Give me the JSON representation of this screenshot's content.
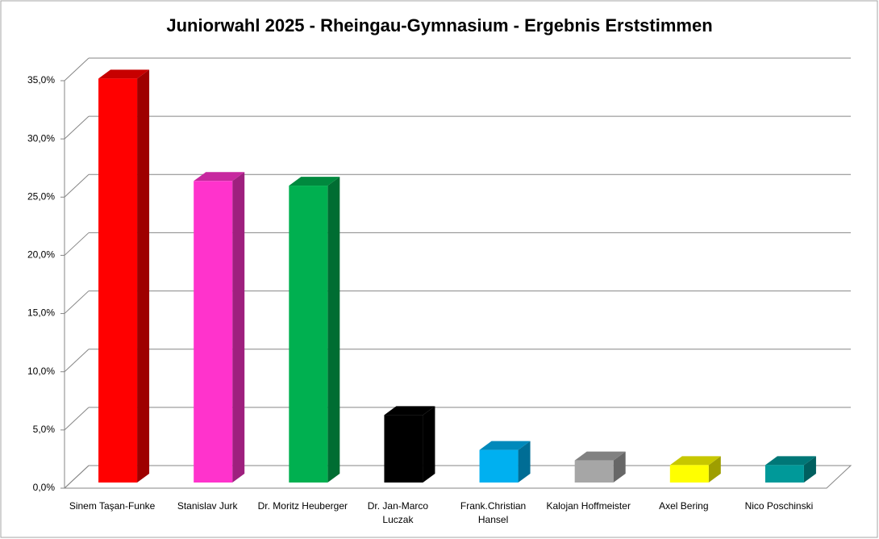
{
  "chart_data": {
    "type": "bar3d",
    "title": "Juniorwahl 2025 - Rheingau-Gymnasium - Ergebnis Erststimmen",
    "categories": [
      "Sinem Taşan-Funke",
      "Stanislav Jurk",
      "Dr. Moritz Heuberger",
      "Dr. Jan-Marco Luczak",
      "Frank.Christian Hansel",
      "Kalojan Hoffmeister",
      "Axel Bering",
      "Nico Poschinski"
    ],
    "values": [
      34.7,
      25.9,
      25.5,
      5.8,
      2.8,
      1.9,
      1.5,
      1.5
    ],
    "colors": [
      "#ff0000",
      "#ff33cc",
      "#00b050",
      "#000000",
      "#00b0f0",
      "#a6a6a6",
      "#ffff00",
      "#009999"
    ],
    "ylim": [
      0,
      35
    ],
    "yticks": [
      {
        "value": 0,
        "label": "0,0%"
      },
      {
        "value": 5,
        "label": "5,0%"
      },
      {
        "value": 10,
        "label": "10,0%"
      },
      {
        "value": 15,
        "label": "15,0%"
      },
      {
        "value": 20,
        "label": "20,0%"
      },
      {
        "value": 25,
        "label": "25,0%"
      },
      {
        "value": 30,
        "label": "30,0%"
      },
      {
        "value": 35,
        "label": "35,0%"
      }
    ],
    "grid": true
  }
}
